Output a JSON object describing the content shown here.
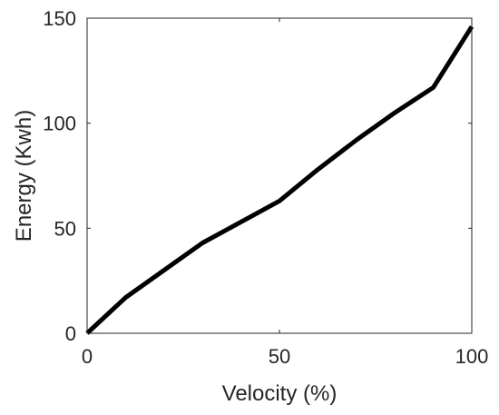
{
  "chart_data": {
    "type": "line",
    "title": "",
    "xlabel": "Velocity (%)",
    "ylabel": "Energy (Kwh)",
    "xlim": [
      0,
      100
    ],
    "ylim": [
      0,
      150
    ],
    "xticks": [
      0,
      50,
      100
    ],
    "yticks": [
      0,
      50,
      100,
      150
    ],
    "xtick_labels": [
      "0",
      "50",
      "100"
    ],
    "ytick_labels": [
      "0",
      "50",
      "100",
      "150"
    ],
    "grid": false,
    "box": true,
    "series": [
      {
        "color": "#000000",
        "x": [
          0,
          10,
          20,
          30,
          40,
          50,
          60,
          70,
          80,
          90,
          100
        ],
        "y": [
          0,
          17,
          30,
          43,
          53,
          63,
          78,
          92,
          105,
          117,
          146
        ]
      }
    ]
  }
}
